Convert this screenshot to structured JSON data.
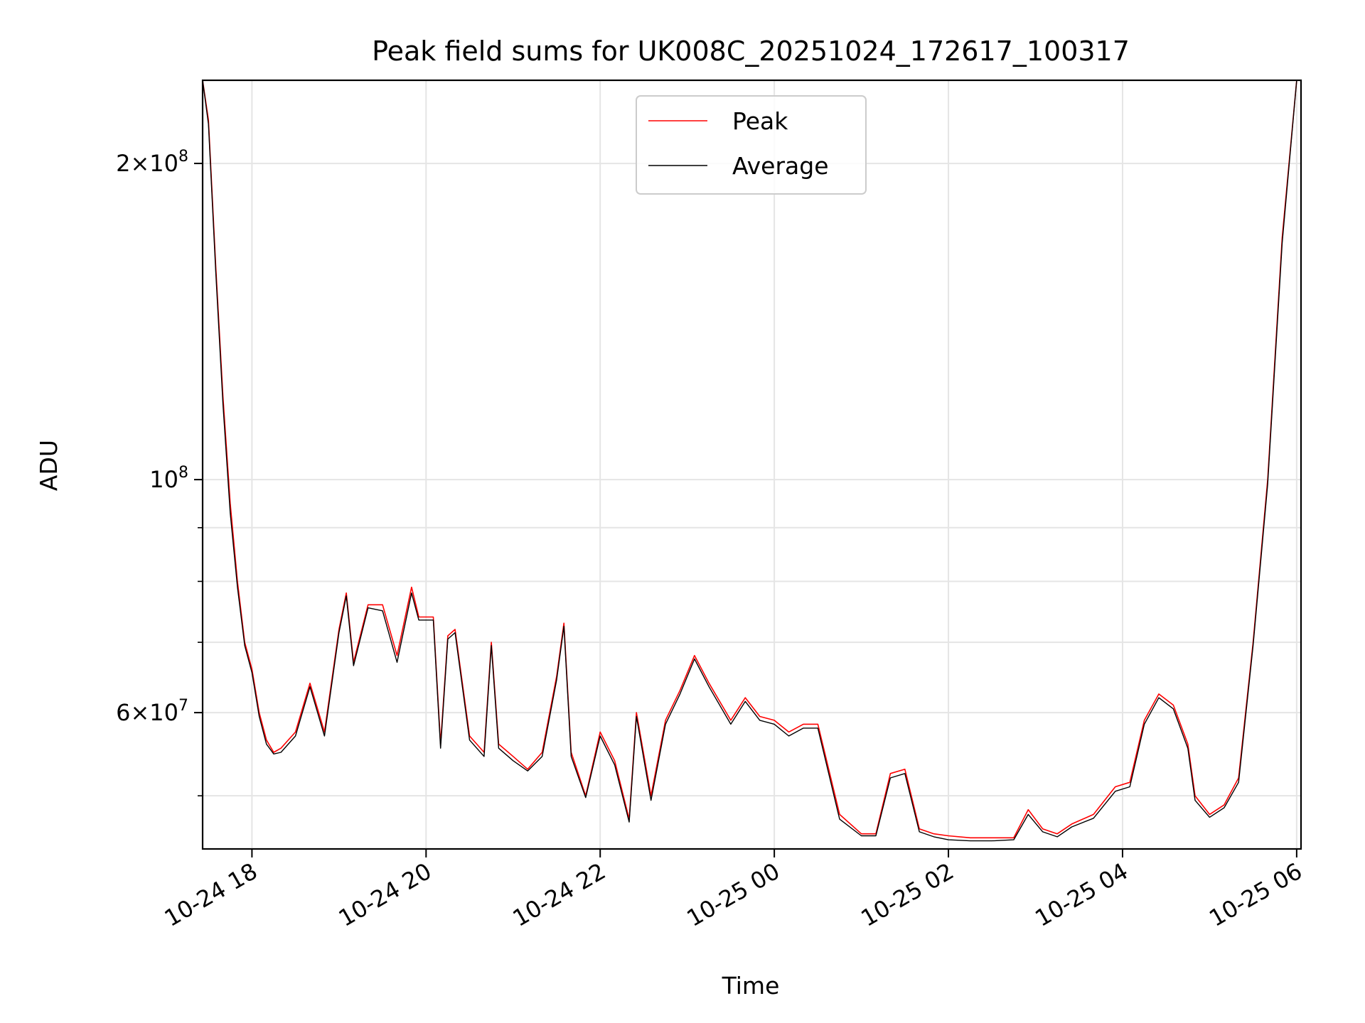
{
  "chart_data": {
    "type": "line",
    "title": "Peak field sums for UK008C_20251024_172617_100317",
    "xlabel": "Time",
    "ylabel": "ADU",
    "yscale": "log",
    "ylim": [
      44500000,
      240000000
    ],
    "xlim": [
      "2025-10-24 17:26",
      "2025-10-25 06:03"
    ],
    "grid": true,
    "legend": "upper center",
    "x_ticks": [
      "2025-10-24 18:00",
      "2025-10-24 20:00",
      "2025-10-24 22:00",
      "2025-10-25 00:00",
      "2025-10-25 02:00",
      "2025-10-25 04:00",
      "2025-10-25 06:00"
    ],
    "x_tick_labels": [
      "10-24 18",
      "10-24 20",
      "10-24 22",
      "10-25 00",
      "10-25 02",
      "10-25 04",
      "10-25 06"
    ],
    "y_major_ticks": [
      {
        "value": 200000000,
        "mantissa": "2",
        "exp": "8"
      },
      {
        "value": 100000000,
        "mantissa": "",
        "exp": "8"
      },
      {
        "value": 60000000,
        "mantissa": "6",
        "exp": "7"
      }
    ],
    "y_minor_grid": [
      50000000,
      70000000,
      80000000,
      90000000
    ],
    "colors": {
      "Peak": "#ff0000",
      "Average": "#000000"
    },
    "series": [
      {
        "name": "Peak",
        "color": "#ff0000",
        "x": [
          "2025-10-24 17:26",
          "2025-10-24 17:30",
          "2025-10-24 17:35",
          "2025-10-24 17:40",
          "2025-10-24 17:45",
          "2025-10-24 17:50",
          "2025-10-24 17:55",
          "2025-10-24 18:00",
          "2025-10-24 18:05",
          "2025-10-24 18:10",
          "2025-10-24 18:15",
          "2025-10-24 18:20",
          "2025-10-24 18:30",
          "2025-10-24 18:40",
          "2025-10-24 18:50",
          "2025-10-24 19:00",
          "2025-10-24 19:05",
          "2025-10-24 19:10",
          "2025-10-24 19:20",
          "2025-10-24 19:30",
          "2025-10-24 19:40",
          "2025-10-24 19:50",
          "2025-10-24 19:55",
          "2025-10-24 20:05",
          "2025-10-24 20:10",
          "2025-10-24 20:15",
          "2025-10-24 20:20",
          "2025-10-24 20:30",
          "2025-10-24 20:40",
          "2025-10-24 20:45",
          "2025-10-24 20:50",
          "2025-10-24 21:00",
          "2025-10-24 21:10",
          "2025-10-24 21:20",
          "2025-10-24 21:30",
          "2025-10-24 21:35",
          "2025-10-24 21:40",
          "2025-10-24 21:50",
          "2025-10-24 22:00",
          "2025-10-24 22:10",
          "2025-10-24 22:20",
          "2025-10-24 22:25",
          "2025-10-24 22:35",
          "2025-10-24 22:45",
          "2025-10-24 22:55",
          "2025-10-24 23:05",
          "2025-10-24 23:15",
          "2025-10-24 23:30",
          "2025-10-24 23:40",
          "2025-10-24 23:50",
          "2025-10-25 00:00",
          "2025-10-25 00:10",
          "2025-10-25 00:20",
          "2025-10-25 00:30",
          "2025-10-25 00:45",
          "2025-10-25 01:00",
          "2025-10-25 01:10",
          "2025-10-25 01:20",
          "2025-10-25 01:30",
          "2025-10-25 01:40",
          "2025-10-25 01:50",
          "2025-10-25 02:00",
          "2025-10-25 02:15",
          "2025-10-25 02:30",
          "2025-10-25 02:45",
          "2025-10-25 02:55",
          "2025-10-25 03:05",
          "2025-10-25 03:15",
          "2025-10-25 03:25",
          "2025-10-25 03:40",
          "2025-10-25 03:55",
          "2025-10-25 04:05",
          "2025-10-25 04:15",
          "2025-10-25 04:25",
          "2025-10-25 04:35",
          "2025-10-25 04:45",
          "2025-10-25 04:50",
          "2025-10-25 05:00",
          "2025-10-25 05:10",
          "2025-10-25 05:20",
          "2025-10-25 05:30",
          "2025-10-25 05:40",
          "2025-10-25 05:50",
          "2025-10-25 06:00"
        ],
        "y": [
          240000000,
          220000000,
          160000000,
          120000000,
          95000000,
          80000000,
          70000000,
          66000000,
          60000000,
          56500000,
          55000000,
          55500000,
          57500000,
          64000000,
          57500000,
          72000000,
          78000000,
          67000000,
          76000000,
          76000000,
          68000000,
          79000000,
          74000000,
          74000000,
          56000000,
          71000000,
          72000000,
          57000000,
          55000000,
          70000000,
          56000000,
          54500000,
          53000000,
          55000000,
          65000000,
          73000000,
          55000000,
          50000000,
          57500000,
          54000000,
          47500000,
          60000000,
          50000000,
          59000000,
          63000000,
          68000000,
          64000000,
          59000000,
          62000000,
          59500000,
          59000000,
          57500000,
          58500000,
          58500000,
          48000000,
          46000000,
          46000000,
          52500000,
          53000000,
          46500000,
          46000000,
          45800000,
          45600000,
          45600000,
          45600000,
          48500000,
          46500000,
          46000000,
          47000000,
          48000000,
          51000000,
          51500000,
          59000000,
          62500000,
          61000000,
          56000000,
          50000000,
          48000000,
          49000000,
          52000000,
          70000000,
          100000000,
          170000000,
          240000000
        ]
      },
      {
        "name": "Average",
        "color": "#000000",
        "x": [
          "2025-10-24 17:26",
          "2025-10-24 17:30",
          "2025-10-24 17:35",
          "2025-10-24 17:40",
          "2025-10-24 17:45",
          "2025-10-24 17:50",
          "2025-10-24 17:55",
          "2025-10-24 18:00",
          "2025-10-24 18:05",
          "2025-10-24 18:10",
          "2025-10-24 18:15",
          "2025-10-24 18:20",
          "2025-10-24 18:30",
          "2025-10-24 18:40",
          "2025-10-24 18:50",
          "2025-10-24 19:00",
          "2025-10-24 19:05",
          "2025-10-24 19:10",
          "2025-10-24 19:20",
          "2025-10-24 19:30",
          "2025-10-24 19:40",
          "2025-10-24 19:50",
          "2025-10-24 19:55",
          "2025-10-24 20:05",
          "2025-10-24 20:10",
          "2025-10-24 20:15",
          "2025-10-24 20:20",
          "2025-10-24 20:30",
          "2025-10-24 20:40",
          "2025-10-24 20:45",
          "2025-10-24 20:50",
          "2025-10-24 21:00",
          "2025-10-24 21:10",
          "2025-10-24 21:20",
          "2025-10-24 21:30",
          "2025-10-24 21:35",
          "2025-10-24 21:40",
          "2025-10-24 21:50",
          "2025-10-24 22:00",
          "2025-10-24 22:10",
          "2025-10-24 22:20",
          "2025-10-24 22:25",
          "2025-10-24 22:35",
          "2025-10-24 22:45",
          "2025-10-24 22:55",
          "2025-10-24 23:05",
          "2025-10-24 23:15",
          "2025-10-24 23:30",
          "2025-10-24 23:40",
          "2025-10-24 23:50",
          "2025-10-25 00:00",
          "2025-10-25 00:10",
          "2025-10-25 00:20",
          "2025-10-25 00:30",
          "2025-10-25 00:45",
          "2025-10-25 01:00",
          "2025-10-25 01:10",
          "2025-10-25 01:20",
          "2025-10-25 01:30",
          "2025-10-25 01:40",
          "2025-10-25 01:50",
          "2025-10-25 02:00",
          "2025-10-25 02:15",
          "2025-10-25 02:30",
          "2025-10-25 02:45",
          "2025-10-25 02:55",
          "2025-10-25 03:05",
          "2025-10-25 03:15",
          "2025-10-25 03:25",
          "2025-10-25 03:40",
          "2025-10-25 03:55",
          "2025-10-25 04:05",
          "2025-10-25 04:15",
          "2025-10-25 04:25",
          "2025-10-25 04:35",
          "2025-10-25 04:45",
          "2025-10-25 04:50",
          "2025-10-25 05:00",
          "2025-10-25 05:10",
          "2025-10-25 05:20",
          "2025-10-25 05:30",
          "2025-10-25 05:40",
          "2025-10-25 05:50",
          "2025-10-25 06:00"
        ],
        "y": [
          240000000,
          218000000,
          158000000,
          118000000,
          93000000,
          79000000,
          69500000,
          65500000,
          59500000,
          56000000,
          54800000,
          55000000,
          57000000,
          63500000,
          57000000,
          71500000,
          77500000,
          66500000,
          75500000,
          75000000,
          67000000,
          78000000,
          73500000,
          73500000,
          55500000,
          70500000,
          71500000,
          56500000,
          54500000,
          69500000,
          55500000,
          54000000,
          52800000,
          54500000,
          64500000,
          72500000,
          54500000,
          49800000,
          57000000,
          53500000,
          47200000,
          59500000,
          49500000,
          58500000,
          62500000,
          67500000,
          63500000,
          58500000,
          61500000,
          59000000,
          58500000,
          57000000,
          58000000,
          58000000,
          47500000,
          45800000,
          45800000,
          52000000,
          52500000,
          46200000,
          45700000,
          45400000,
          45300000,
          45300000,
          45400000,
          48000000,
          46200000,
          45700000,
          46700000,
          47600000,
          50500000,
          51000000,
          58500000,
          62000000,
          60500000,
          55500000,
          49500000,
          47700000,
          48700000,
          51500000,
          69500000,
          99000000,
          168000000,
          240000000
        ]
      }
    ]
  }
}
